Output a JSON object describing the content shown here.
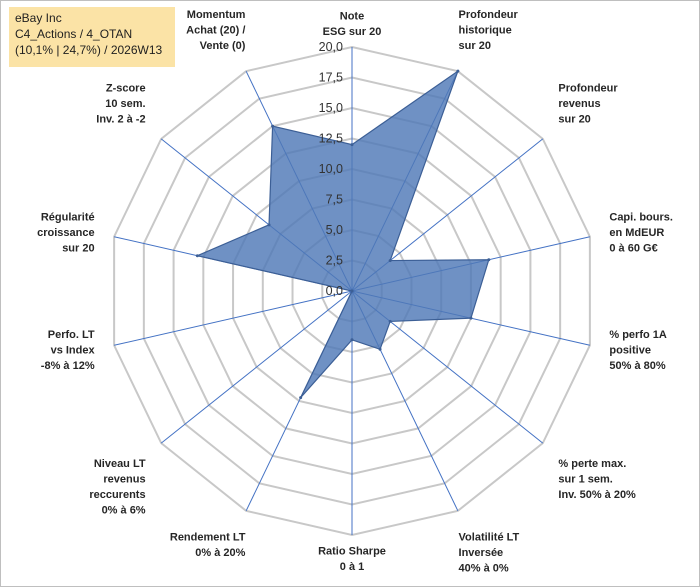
{
  "header": {
    "line1": "eBay Inc",
    "line2": "C4_Actions / 4_OTAN",
    "line3": "(10,1% | 24,7%) / 2026W13"
  },
  "colors": {
    "fill": "#4f79b7",
    "stroke": "#3c5f96",
    "grid": "#c8c8c8",
    "spoke": "#4472c4",
    "title_bg": "#fbe3a6"
  },
  "chart_data": {
    "type": "radar",
    "scale": {
      "min": 0,
      "max": 20,
      "step": 2.5
    },
    "tick_labels": [
      "0,0",
      "2,5",
      "5,0",
      "7,5",
      "10,0",
      "12,5",
      "15,0",
      "17,5",
      "20,0"
    ],
    "axes": [
      {
        "label": [
          "Note",
          "ESG sur 20"
        ],
        "value": 12
      },
      {
        "label": [
          "Profondeur",
          "historique",
          "sur 20"
        ],
        "value": 20
      },
      {
        "label": [
          "Profondeur",
          "revenus",
          "sur 20"
        ],
        "value": 4
      },
      {
        "label": [
          "Capi. bours.",
          "en MdEUR",
          "0 à 60 G€"
        ],
        "value": 11.5
      },
      {
        "label": [
          "% perfo 1A",
          "positive",
          "50% à 80%"
        ],
        "value": 10
      },
      {
        "label": [
          "% perte max.",
          "sur 1 sem.",
          "Inv. 50% à 20%"
        ],
        "value": 4
      },
      {
        "label": [
          "Volatilité LT",
          "Inversée",
          "40% à 0%"
        ],
        "value": 5.3
      },
      {
        "label": [
          "Ratio Sharpe",
          "0 à 1"
        ],
        "value": 4
      },
      {
        "label": [
          "Rendement LT",
          "0% à 20%"
        ],
        "value": 9.7
      },
      {
        "label": [
          "Niveau LT",
          "revenus",
          "reccurents",
          "0% à 6%"
        ],
        "value": 0
      },
      {
        "label": [
          "Perfo. LT",
          "vs Index",
          "-8% à 12%"
        ],
        "value": 0
      },
      {
        "label": [
          "Régularité",
          "croissance",
          "sur 20"
        ],
        "value": 13
      },
      {
        "label": [
          "Z-score",
          "10 sem.",
          "Inv. 2 à -2"
        ],
        "value": 8.7
      },
      {
        "label": [
          "Momentum",
          "Achat (20) /",
          "Vente (0)"
        ],
        "value": 15
      }
    ]
  }
}
